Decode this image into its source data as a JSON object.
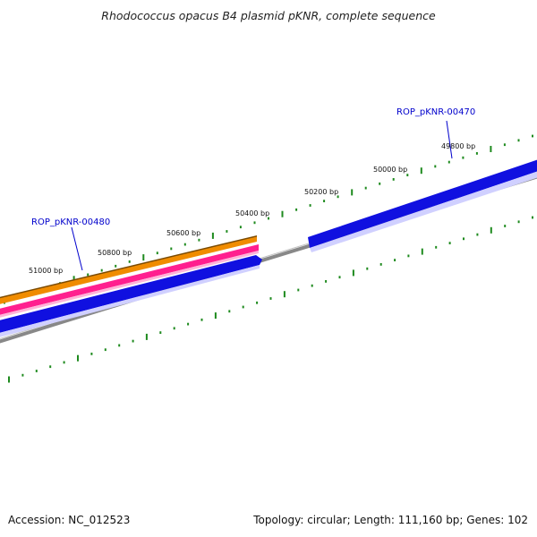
{
  "title": "Rhodococcus opacus B4 plasmid pKNR, complete sequence",
  "footer": {
    "accession_label": "Accession:",
    "accession": "NC_012523",
    "topology_label": "Topology:",
    "topology": "circular;",
    "length_label": "Length:",
    "length": "111,160 bp;",
    "genes_label": "Genes:",
    "genes": "102"
  },
  "ticks": [
    {
      "label": "49800 bp"
    },
    {
      "label": "50000 bp"
    },
    {
      "label": "50200 bp"
    },
    {
      "label": "50400 bp"
    },
    {
      "label": "50600 bp"
    },
    {
      "label": "50800 bp"
    },
    {
      "label": "51000 bp"
    }
  ],
  "genes": [
    {
      "name": "ROP_pKNR-00470"
    },
    {
      "name": "ROP_pKNR-00480"
    }
  ],
  "colors": {
    "tick": "#1e8a1e",
    "backbone": "#8a8a8a",
    "cds_forward": "#1010e0",
    "cds_shadow": "#c8c8ff",
    "gene_orange": "#f08c00",
    "gene_pink": "#ff1f8f",
    "gene_label": "#0000cc"
  }
}
